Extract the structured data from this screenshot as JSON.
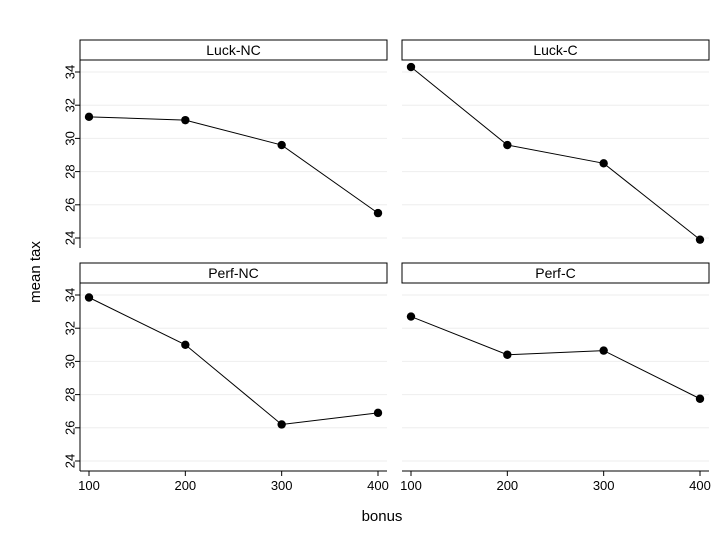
{
  "chart_data": {
    "type": "line",
    "xlabel": "bonus",
    "ylabel": "mean tax",
    "x_ticks": [
      100,
      200,
      300,
      400
    ],
    "y_ticks": [
      24,
      26,
      28,
      30,
      32,
      34
    ],
    "xlim": [
      100,
      400
    ],
    "ylim": [
      23,
      35.5
    ],
    "grid": true,
    "panels": [
      {
        "title": "Luck-NC",
        "x": [
          100,
          200,
          300,
          400
        ],
        "y": [
          31.3,
          31.1,
          29.6,
          25.5
        ]
      },
      {
        "title": "Luck-C",
        "x": [
          100,
          200,
          300,
          400
        ],
        "y": [
          34.3,
          29.6,
          28.5,
          23.9
        ]
      },
      {
        "title": "Perf-NC",
        "x": [
          100,
          200,
          300,
          400
        ],
        "y": [
          33.85,
          31.0,
          26.2,
          26.9
        ]
      },
      {
        "title": "Perf-C",
        "x": [
          100,
          200,
          300,
          400
        ],
        "y": [
          32.7,
          30.4,
          30.65,
          27.75
        ]
      }
    ],
    "colors": {
      "line": "#000000",
      "marker": "#000000",
      "grid": "#eeeeee"
    }
  }
}
